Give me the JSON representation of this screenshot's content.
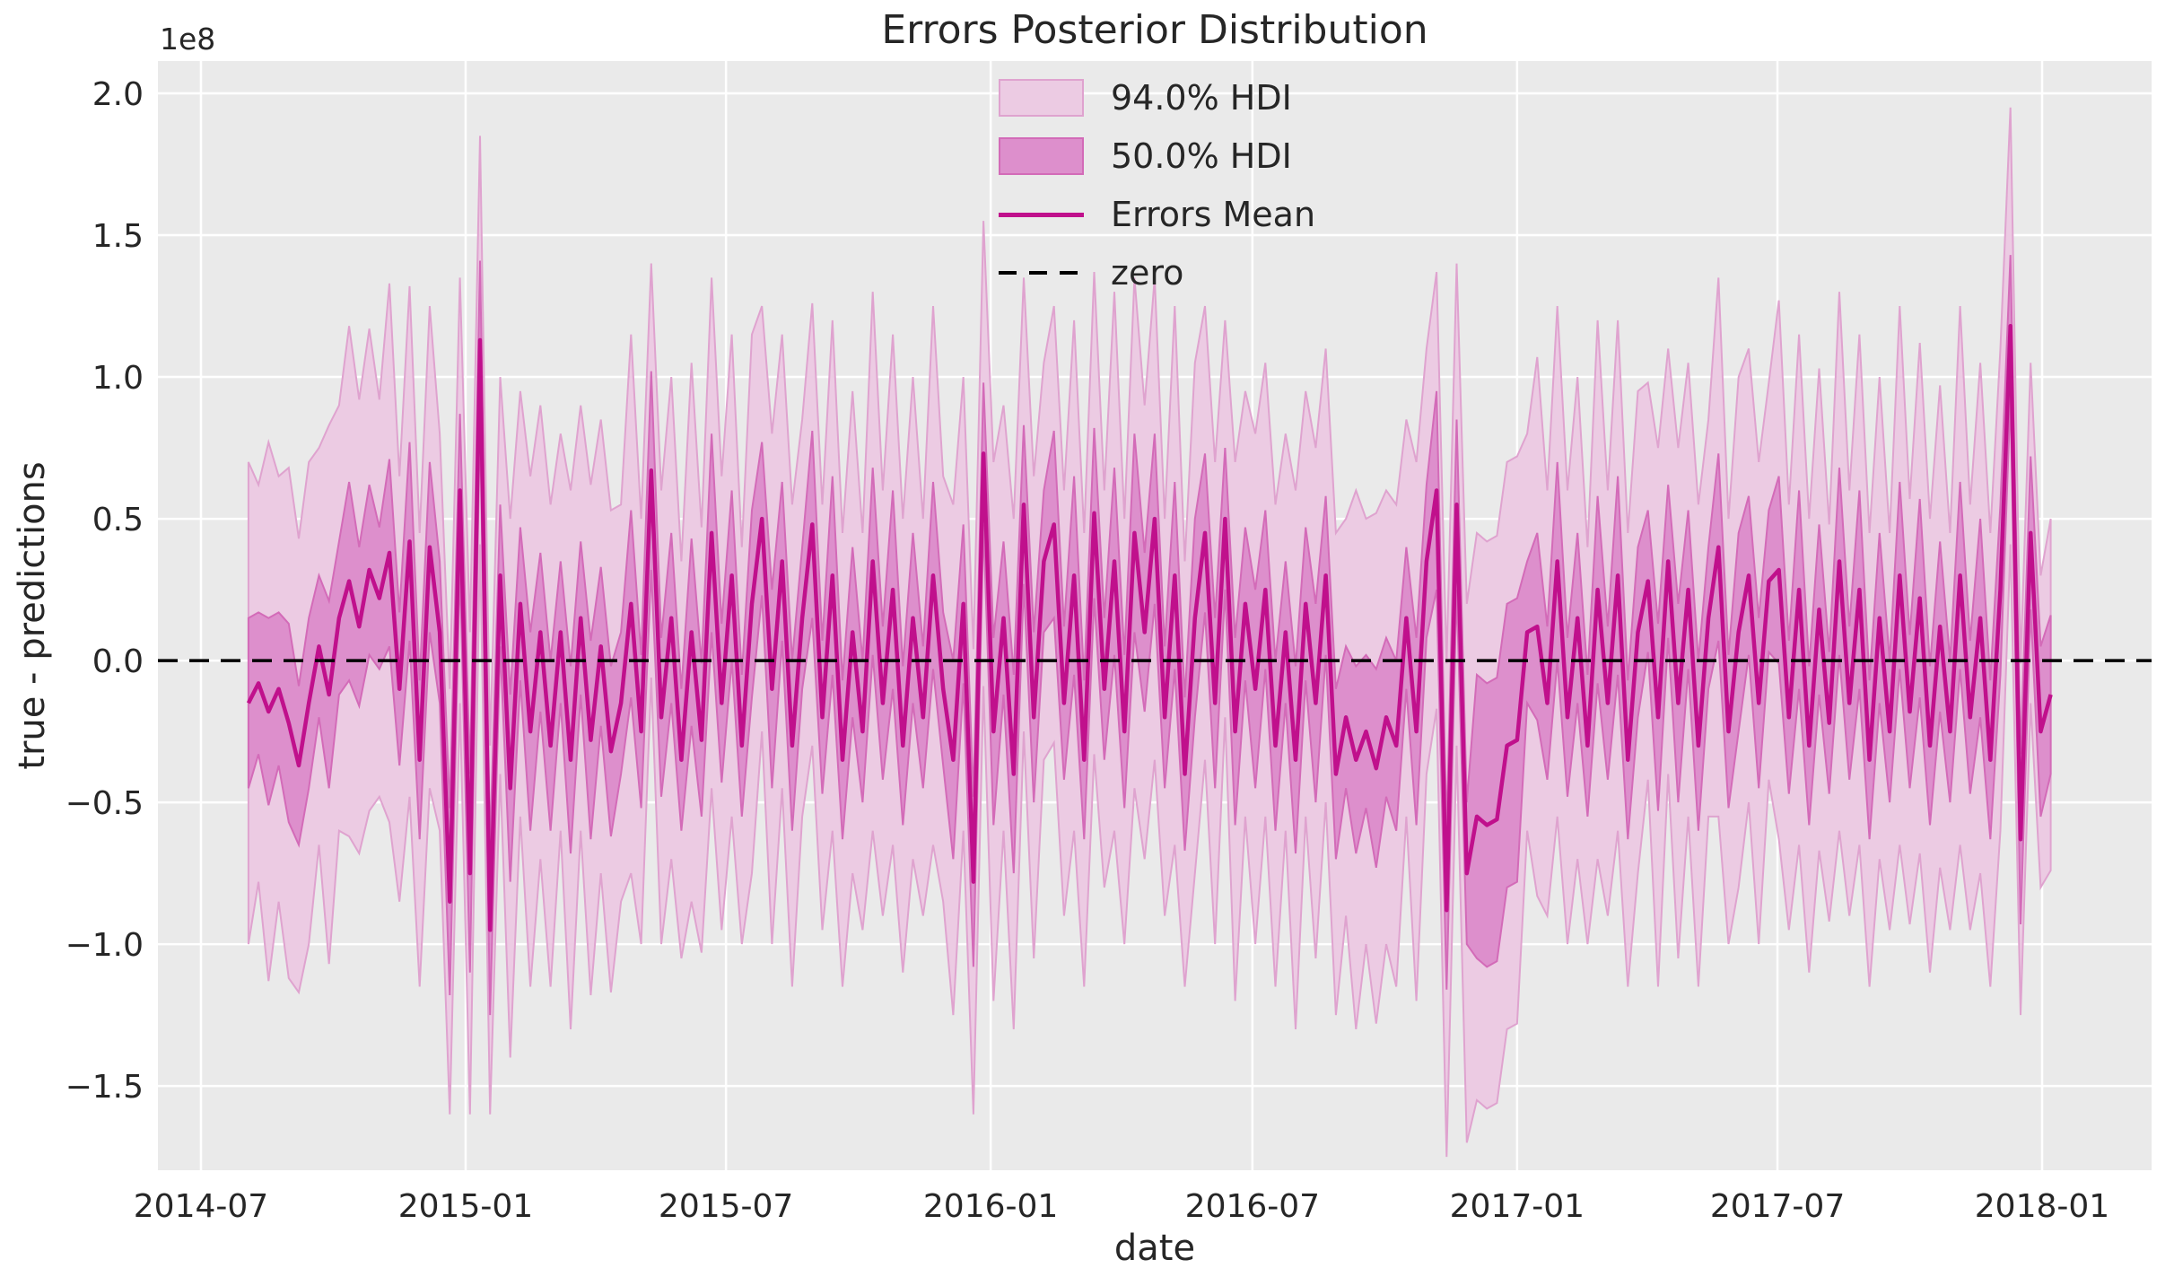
{
  "title": "Errors Posterior Distribution",
  "axes": {
    "xlabel": "date",
    "ylabel": "true - predictions",
    "y_offset_label": "1e8"
  },
  "legend": {
    "items": [
      {
        "label": "94.0% HDI",
        "kind": "band"
      },
      {
        "label": "50.0% HDI",
        "kind": "band"
      },
      {
        "label": "Errors Mean",
        "kind": "line"
      },
      {
        "label": "zero",
        "kind": "dashed-line"
      }
    ]
  },
  "colors": {
    "figure_bg": "#ffffff",
    "axes_bg": "#EAEAEA",
    "grid": "#ffffff",
    "hdi94_fill": "#ECCBE3",
    "hdi94_edge": "#DFA3CF",
    "hdi50_fill": "#DD8FCC",
    "hdi50_edge": "#D36BB8",
    "mean_line": "#C0108C",
    "zero_line": "#000000",
    "text": "#262626"
  },
  "chart_data": {
    "type": "line",
    "title": "Errors Posterior Distribution",
    "xlabel": "date",
    "ylabel": "true - predictions",
    "y_offset_text": "1e8",
    "y_unit_multiplier": 100000000,
    "grid": true,
    "legend_position": "upper center",
    "x_start_date": "2014-08-03",
    "x_freq_days": 7,
    "n_points": 180,
    "xtick_labels": [
      "2014-07",
      "2015-01",
      "2015-07",
      "2016-01",
      "2016-07",
      "2017-01",
      "2017-07",
      "2018-01"
    ],
    "xtick_dates": [
      "2014-07-01",
      "2015-01-01",
      "2015-07-01",
      "2016-01-01",
      "2016-07-01",
      "2017-01-01",
      "2017-07-01",
      "2018-01-01"
    ],
    "ytick_values": [
      -1.5,
      -1.0,
      -0.5,
      0.0,
      0.5,
      1.0,
      1.5,
      2.0
    ],
    "ylim": [
      -1.797,
      2.114
    ],
    "series": [
      {
        "name": "94.0% HDI",
        "kind": "band",
        "low": [
          -1.0,
          -0.78,
          -1.13,
          -0.85,
          -1.12,
          -1.17,
          -1.0,
          -0.65,
          -1.07,
          -0.6,
          -0.62,
          -0.68,
          -0.53,
          -0.48,
          -0.57,
          -0.85,
          -0.48,
          -1.15,
          -0.45,
          -0.6,
          -1.6,
          -0.15,
          -1.6,
          0.41,
          -1.6,
          -0.4,
          -1.4,
          -0.55,
          -1.15,
          -0.7,
          -1.15,
          -0.6,
          -1.3,
          -0.6,
          -1.18,
          -0.75,
          -1.17,
          -0.85,
          -0.75,
          -1.0,
          -0.06,
          -1.0,
          -0.7,
          -1.05,
          -0.85,
          -1.03,
          -0.45,
          -0.95,
          -0.55,
          -1.0,
          -0.75,
          -0.25,
          -1.0,
          -0.45,
          -1.15,
          -0.55,
          -0.3,
          -0.95,
          -0.6,
          -1.15,
          -0.75,
          -0.95,
          -0.6,
          -0.9,
          -0.65,
          -1.1,
          -0.7,
          -0.9,
          -0.65,
          -0.85,
          -1.25,
          -0.6,
          -1.6,
          -0.09,
          -1.2,
          -0.6,
          -1.3,
          -0.25,
          -1.05,
          -0.35,
          -0.29,
          -0.9,
          -0.6,
          -1.15,
          -0.33,
          -0.8,
          -0.6,
          -1.0,
          -0.45,
          -0.7,
          -0.35,
          -0.9,
          -0.65,
          -1.15,
          -0.75,
          -0.35,
          -1.0,
          -0.2,
          -1.2,
          -0.55,
          -1.0,
          -0.55,
          -1.15,
          -0.6,
          -1.3,
          -0.55,
          -1.05,
          -0.5,
          -1.25,
          -0.9,
          -1.3,
          -1.0,
          -1.28,
          -1.0,
          -1.15,
          -0.55,
          -1.2,
          -0.4,
          -0.17,
          -1.75,
          -0.3,
          -1.7,
          -1.55,
          -1.58,
          -1.56,
          -1.3,
          -1.28,
          -0.6,
          -0.83,
          -0.9,
          -0.55,
          -1.0,
          -0.7,
          -1.0,
          -0.7,
          -0.9,
          -0.6,
          -1.15,
          -0.75,
          -0.42,
          -1.15,
          -0.4,
          -1.05,
          -0.55,
          -1.15,
          -0.55,
          -0.55,
          -1.0,
          -0.8,
          -0.5,
          -1.0,
          -0.42,
          -0.63,
          -0.95,
          -0.65,
          -1.1,
          -0.67,
          -0.92,
          -0.6,
          -0.9,
          -0.65,
          -1.15,
          -0.7,
          -0.95,
          -0.65,
          -0.93,
          -0.68,
          -1.1,
          -0.73,
          -0.95,
          -0.65,
          -0.95,
          -0.75,
          -1.15,
          -0.6,
          0.41,
          -1.25,
          -0.15,
          -0.8,
          -0.74
        ],
        "high": [
          0.7,
          0.62,
          0.77,
          0.65,
          0.68,
          0.43,
          0.7,
          0.75,
          0.83,
          0.9,
          1.18,
          0.92,
          1.17,
          0.92,
          1.33,
          0.65,
          1.32,
          0.45,
          1.25,
          0.8,
          -0.1,
          1.35,
          0.1,
          1.85,
          -0.3,
          1.0,
          0.5,
          0.95,
          0.65,
          0.9,
          0.55,
          0.8,
          0.6,
          0.9,
          0.62,
          0.85,
          0.53,
          0.55,
          1.15,
          0.5,
          1.4,
          0.6,
          1.0,
          0.35,
          1.05,
          0.47,
          1.35,
          0.65,
          1.15,
          0.4,
          1.15,
          1.25,
          0.8,
          1.15,
          0.55,
          0.85,
          1.26,
          0.55,
          1.2,
          0.45,
          0.95,
          0.45,
          1.3,
          0.6,
          1.15,
          0.5,
          1.0,
          0.5,
          1.25,
          0.65,
          0.55,
          1.0,
          0.04,
          1.55,
          0.7,
          0.9,
          0.5,
          1.35,
          0.65,
          1.05,
          1.25,
          0.6,
          1.2,
          0.45,
          1.37,
          0.6,
          1.3,
          0.5,
          1.35,
          0.9,
          1.35,
          0.5,
          1.25,
          0.35,
          1.05,
          1.25,
          0.7,
          1.2,
          0.7,
          0.95,
          0.8,
          1.05,
          0.55,
          0.8,
          0.6,
          0.95,
          0.75,
          1.1,
          0.45,
          0.5,
          0.6,
          0.5,
          0.52,
          0.6,
          0.55,
          0.85,
          0.7,
          1.1,
          1.37,
          -0.01,
          1.4,
          0.2,
          0.45,
          0.42,
          0.44,
          0.7,
          0.72,
          0.8,
          1.07,
          0.6,
          1.25,
          0.6,
          1.0,
          0.4,
          1.2,
          0.6,
          1.2,
          0.45,
          0.95,
          0.98,
          0.75,
          1.1,
          0.75,
          1.05,
          0.55,
          0.85,
          1.35,
          0.5,
          1.0,
          1.1,
          0.7,
          0.98,
          1.27,
          0.55,
          1.15,
          0.5,
          1.03,
          0.48,
          1.3,
          0.6,
          1.15,
          0.45,
          1.0,
          0.45,
          1.25,
          0.57,
          1.12,
          0.5,
          0.97,
          0.45,
          1.25,
          0.55,
          1.05,
          0.45,
          1.1,
          1.95,
          -0.01,
          1.05,
          0.3,
          0.5
        ]
      },
      {
        "name": "50.0% HDI",
        "kind": "band",
        "low": [
          -0.45,
          -0.33,
          -0.51,
          -0.37,
          -0.57,
          -0.65,
          -0.45,
          -0.2,
          -0.45,
          -0.12,
          -0.07,
          -0.16,
          0.02,
          -0.03,
          0.05,
          -0.37,
          0.07,
          -0.63,
          0.1,
          -0.15,
          -1.18,
          0.33,
          -1.1,
          0.85,
          -1.25,
          0.05,
          -0.78,
          -0.07,
          -0.6,
          -0.18,
          -0.6,
          -0.15,
          -0.68,
          -0.12,
          -0.63,
          -0.23,
          -0.62,
          -0.4,
          -0.13,
          -0.52,
          0.32,
          -0.48,
          -0.15,
          -0.6,
          -0.23,
          -0.55,
          0.1,
          -0.43,
          0.0,
          -0.55,
          -0.13,
          0.23,
          -0.45,
          0.07,
          -0.6,
          -0.1,
          0.15,
          -0.47,
          -0.05,
          -0.63,
          -0.2,
          -0.5,
          0.02,
          -0.42,
          -0.1,
          -0.58,
          -0.15,
          -0.45,
          -0.03,
          -0.37,
          -0.7,
          -0.08,
          -1.08,
          0.48,
          -0.58,
          -0.12,
          -0.75,
          0.27,
          -0.5,
          0.1,
          0.15,
          -0.42,
          -0.05,
          -0.63,
          0.22,
          -0.35,
          0.02,
          -0.52,
          0.1,
          -0.18,
          0.2,
          -0.45,
          -0.03,
          -0.67,
          -0.2,
          0.17,
          -0.45,
          0.25,
          -0.58,
          -0.07,
          -0.45,
          -0.03,
          -0.6,
          -0.15,
          -0.68,
          -0.07,
          -0.5,
          0.02,
          -0.7,
          -0.45,
          -0.68,
          -0.52,
          -0.73,
          -0.48,
          -0.6,
          -0.1,
          -0.58,
          0.08,
          0.25,
          -1.16,
          0.25,
          -1.0,
          -1.05,
          -1.08,
          -1.06,
          -0.8,
          -0.78,
          -0.15,
          -0.21,
          -0.42,
          0.0,
          -0.48,
          -0.15,
          -0.55,
          -0.08,
          -0.42,
          -0.05,
          -0.63,
          -0.2,
          0.03,
          -0.53,
          0.08,
          -0.5,
          -0.03,
          -0.6,
          -0.1,
          0.07,
          -0.52,
          -0.25,
          0.02,
          -0.45,
          0.03,
          -0.01,
          -0.47,
          -0.1,
          -0.58,
          -0.12,
          -0.47,
          0.02,
          -0.42,
          -0.1,
          -0.63,
          -0.15,
          -0.5,
          -0.03,
          -0.45,
          -0.13,
          -0.58,
          -0.18,
          -0.5,
          -0.03,
          -0.47,
          -0.2,
          -0.63,
          -0.05,
          0.93,
          -0.93,
          0.18,
          -0.55,
          -0.4
        ],
        "high": [
          0.15,
          0.17,
          0.15,
          0.17,
          0.13,
          -0.09,
          0.15,
          0.3,
          0.21,
          0.42,
          0.63,
          0.4,
          0.62,
          0.47,
          0.71,
          0.17,
          0.77,
          -0.07,
          0.7,
          0.35,
          -0.52,
          0.87,
          -0.4,
          1.41,
          -0.65,
          0.55,
          -0.12,
          0.47,
          0.1,
          0.38,
          0.0,
          0.35,
          -0.02,
          0.42,
          0.07,
          0.33,
          -0.02,
          0.1,
          0.53,
          0.02,
          1.02,
          0.08,
          0.45,
          -0.1,
          0.43,
          -0.01,
          0.8,
          0.13,
          0.6,
          -0.05,
          0.53,
          0.77,
          0.25,
          0.63,
          0.0,
          0.4,
          0.81,
          0.07,
          0.65,
          -0.07,
          0.4,
          0.0,
          0.68,
          0.12,
          0.6,
          -0.02,
          0.45,
          0.05,
          0.63,
          0.17,
          0.0,
          0.48,
          -0.48,
          0.98,
          0.08,
          0.42,
          -0.05,
          0.83,
          0.1,
          0.6,
          0.81,
          0.12,
          0.65,
          -0.07,
          0.82,
          0.15,
          0.68,
          0.02,
          0.8,
          0.38,
          0.8,
          0.05,
          0.63,
          -0.13,
          0.5,
          0.73,
          0.15,
          0.75,
          0.08,
          0.47,
          0.25,
          0.53,
          0.0,
          0.35,
          -0.02,
          0.47,
          0.2,
          0.58,
          -0.1,
          0.05,
          -0.02,
          0.02,
          -0.03,
          0.08,
          0.0,
          0.4,
          0.08,
          0.62,
          0.95,
          -0.6,
          0.85,
          -0.5,
          -0.05,
          -0.08,
          -0.06,
          0.2,
          0.22,
          0.35,
          0.45,
          0.12,
          0.7,
          0.08,
          0.45,
          -0.05,
          0.58,
          0.12,
          0.65,
          -0.07,
          0.4,
          0.53,
          0.13,
          0.62,
          0.2,
          0.53,
          0.0,
          0.4,
          0.73,
          0.02,
          0.45,
          0.58,
          0.15,
          0.53,
          0.65,
          0.07,
          0.6,
          -0.02,
          0.48,
          0.03,
          0.68,
          0.12,
          0.6,
          -0.07,
          0.45,
          0.0,
          0.63,
          0.09,
          0.57,
          -0.02,
          0.42,
          0.0,
          0.63,
          0.07,
          0.5,
          -0.07,
          0.55,
          1.43,
          -0.33,
          0.72,
          0.05,
          0.16
        ]
      },
      {
        "name": "Errors Mean",
        "kind": "line",
        "values": [
          -0.15,
          -0.08,
          -0.18,
          -0.1,
          -0.22,
          -0.37,
          -0.15,
          0.05,
          -0.12,
          0.15,
          0.28,
          0.12,
          0.32,
          0.22,
          0.38,
          -0.1,
          0.42,
          -0.35,
          0.4,
          0.1,
          -0.85,
          0.6,
          -0.75,
          1.13,
          -0.95,
          0.3,
          -0.45,
          0.2,
          -0.25,
          0.1,
          -0.3,
          0.1,
          -0.35,
          0.15,
          -0.28,
          0.05,
          -0.32,
          -0.15,
          0.2,
          -0.25,
          0.67,
          -0.2,
          0.15,
          -0.35,
          0.1,
          -0.28,
          0.45,
          -0.15,
          0.3,
          -0.3,
          0.2,
          0.5,
          -0.1,
          0.35,
          -0.3,
          0.15,
          0.48,
          -0.2,
          0.3,
          -0.35,
          0.1,
          -0.25,
          0.35,
          -0.15,
          0.25,
          -0.3,
          0.15,
          -0.2,
          0.3,
          -0.1,
          -0.35,
          0.2,
          -0.78,
          0.73,
          -0.25,
          0.15,
          -0.4,
          0.55,
          -0.2,
          0.35,
          0.48,
          -0.15,
          0.3,
          -0.35,
          0.52,
          -0.1,
          0.35,
          -0.25,
          0.45,
          0.1,
          0.5,
          -0.2,
          0.3,
          -0.4,
          0.15,
          0.45,
          -0.15,
          0.5,
          -0.25,
          0.2,
          -0.1,
          0.25,
          -0.3,
          0.1,
          -0.35,
          0.2,
          -0.15,
          0.3,
          -0.4,
          -0.2,
          -0.35,
          -0.25,
          -0.38,
          -0.2,
          -0.3,
          0.15,
          -0.25,
          0.35,
          0.6,
          -0.88,
          0.55,
          -0.75,
          -0.55,
          -0.58,
          -0.56,
          -0.3,
          -0.28,
          0.1,
          0.12,
          -0.15,
          0.35,
          -0.2,
          0.15,
          -0.3,
          0.25,
          -0.15,
          0.3,
          -0.35,
          0.1,
          0.28,
          -0.2,
          0.35,
          -0.15,
          0.25,
          -0.3,
          0.15,
          0.4,
          -0.25,
          0.1,
          0.3,
          -0.15,
          0.28,
          0.32,
          -0.2,
          0.25,
          -0.3,
          0.18,
          -0.22,
          0.35,
          -0.15,
          0.25,
          -0.35,
          0.15,
          -0.25,
          0.3,
          -0.18,
          0.22,
          -0.3,
          0.12,
          -0.25,
          0.3,
          -0.2,
          0.15,
          -0.35,
          0.25,
          1.18,
          -0.63,
          0.45,
          -0.25,
          -0.12
        ]
      },
      {
        "name": "zero",
        "kind": "hline",
        "value": 0.0
      }
    ]
  }
}
